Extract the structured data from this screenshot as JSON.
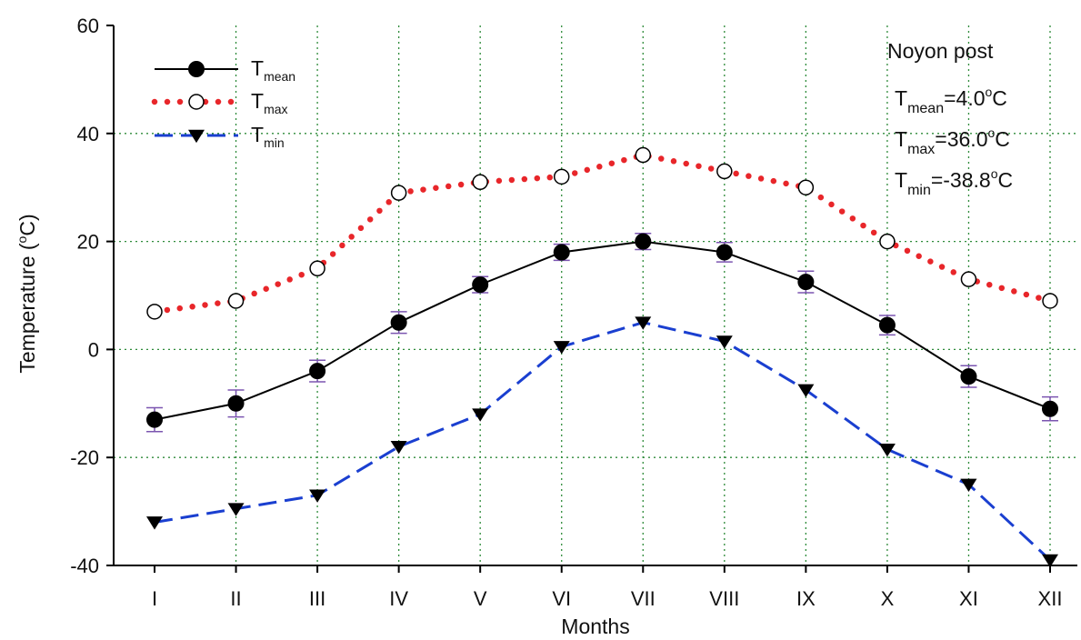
{
  "chart_data": {
    "type": "line",
    "categories": [
      "I",
      "II",
      "III",
      "IV",
      "V",
      "VI",
      "VII",
      "VIII",
      "IX",
      "X",
      "XI",
      "XII"
    ],
    "xlabel": "Months",
    "ylabel": {
      "prefix": "Temperature (",
      "sup": "o",
      "suffix": "C)"
    },
    "ylim": [
      -40,
      60
    ],
    "yticks": [
      "-40",
      "-20",
      "0",
      "20",
      "40",
      "60"
    ],
    "grid": true,
    "legend_position": "top-left",
    "series": [
      {
        "key": "mean",
        "name_main": "T",
        "name_sub": "mean",
        "color": "#000000",
        "marker": "filled-circle",
        "line": "solid",
        "values": [
          -13,
          -10,
          -4,
          5,
          12,
          18,
          20,
          18,
          12.5,
          4.5,
          -5,
          -11
        ],
        "errors": [
          2.2,
          2.5,
          2,
          2,
          1.5,
          1.5,
          1.5,
          1.8,
          2,
          1.8,
          2,
          2.2
        ],
        "error_color": "#7b55b0"
      },
      {
        "key": "max",
        "name_main": "T",
        "name_sub": "max",
        "color": "#e8262a",
        "marker": "open-circle",
        "line": "dotted",
        "values": [
          7,
          9,
          15,
          29,
          31,
          32,
          36,
          33,
          30,
          20,
          13,
          9
        ]
      },
      {
        "key": "min",
        "name_main": "T",
        "name_sub": "min",
        "color": "#1a3fd0",
        "marker": "filled-triangle-down",
        "line": "dashed",
        "values": [
          -32,
          -29.5,
          -27,
          -18,
          -12,
          0.5,
          5,
          1.5,
          -7.5,
          -18.5,
          -25,
          -39
        ]
      }
    ],
    "annotation": {
      "station": "Noyon post",
      "lines": [
        {
          "main": "T",
          "sub": "mean",
          "value": "=4.0",
          "sup": "o",
          "unit": "C"
        },
        {
          "main": "T",
          "sub": "max",
          "value": "=36.0",
          "sup": "o",
          "unit": "C"
        },
        {
          "main": "T",
          "sub": "min",
          "value": "=-38.8",
          "sup": "o",
          "unit": "C"
        }
      ]
    }
  }
}
